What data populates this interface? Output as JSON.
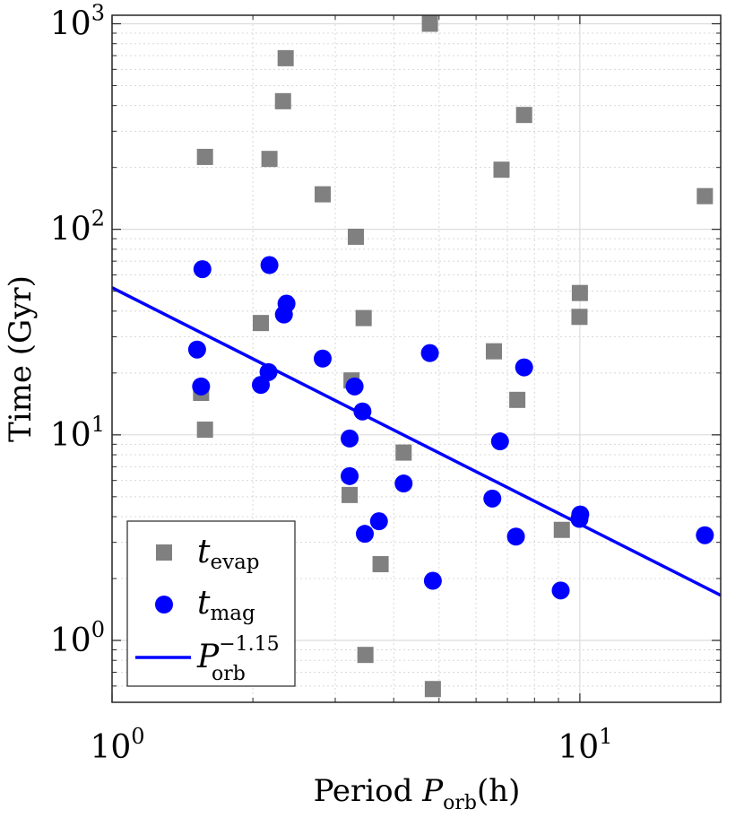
{
  "chart_data": {
    "type": "scatter",
    "x_scale": "log",
    "y_scale": "log",
    "xlim": [
      1,
      20
    ],
    "ylim": [
      0.5,
      1100
    ],
    "grid": true,
    "minor_grid": true,
    "legend_position": "bottom-left",
    "xlabel": {
      "prefix": "Period ",
      "symbol": "P",
      "sub": "orb",
      "suffix": "(h)"
    },
    "ylabel": "Time (Gyr)",
    "xticks": [
      {
        "value": 1,
        "base": "10",
        "exp": "0"
      },
      {
        "value": 10,
        "base": "10",
        "exp": "1"
      }
    ],
    "yticks": [
      {
        "value": 1,
        "base": "10",
        "exp": "0"
      },
      {
        "value": 10,
        "base": "10",
        "exp": "1"
      },
      {
        "value": 100,
        "base": "10",
        "exp": "2"
      },
      {
        "value": 1000,
        "base": "10",
        "exp": "3"
      }
    ],
    "colors": {
      "evap": "#808080",
      "mag": "#0000ff",
      "fit": "#0000ff"
    },
    "series": [
      {
        "key": "evap",
        "marker": "square",
        "legend": {
          "symbol": "t",
          "sub": "evap"
        },
        "points": [
          [
            1.55,
            16.0
          ],
          [
            1.58,
            10.6
          ],
          [
            1.58,
            225
          ],
          [
            2.08,
            35.0
          ],
          [
            2.17,
            220
          ],
          [
            2.32,
            420
          ],
          [
            2.35,
            680
          ],
          [
            2.82,
            148
          ],
          [
            3.25,
            18.4
          ],
          [
            3.22,
            5.1
          ],
          [
            3.32,
            92
          ],
          [
            3.45,
            37.0
          ],
          [
            3.48,
            0.85
          ],
          [
            3.75,
            2.35
          ],
          [
            4.2,
            8.2
          ],
          [
            4.78,
            1000
          ],
          [
            4.85,
            0.58
          ],
          [
            6.55,
            25.5
          ],
          [
            6.8,
            195
          ],
          [
            7.35,
            14.8
          ],
          [
            7.6,
            360
          ],
          [
            9.15,
            3.45
          ],
          [
            10.0,
            49
          ],
          [
            9.98,
            37.5
          ],
          [
            18.5,
            145
          ]
        ]
      },
      {
        "key": "mag",
        "marker": "circle",
        "legend": {
          "symbol": "t",
          "sub": "mag"
        },
        "points": [
          [
            1.52,
            26.0
          ],
          [
            1.55,
            17.2
          ],
          [
            1.56,
            64
          ],
          [
            2.08,
            17.5
          ],
          [
            2.16,
            20.2
          ],
          [
            2.17,
            67
          ],
          [
            2.33,
            38.5
          ],
          [
            2.36,
            43.5
          ],
          [
            2.82,
            23.5
          ],
          [
            3.22,
            9.6
          ],
          [
            3.22,
            6.3
          ],
          [
            3.3,
            17.2
          ],
          [
            3.43,
            13.0
          ],
          [
            3.47,
            3.3
          ],
          [
            3.72,
            3.8
          ],
          [
            4.2,
            5.8
          ],
          [
            4.78,
            25.0
          ],
          [
            4.85,
            1.95
          ],
          [
            6.5,
            4.9
          ],
          [
            6.75,
            9.3
          ],
          [
            7.3,
            3.2
          ],
          [
            7.6,
            21.3
          ],
          [
            9.1,
            1.75
          ],
          [
            9.98,
            3.9
          ],
          [
            10.02,
            4.1
          ],
          [
            18.5,
            3.25
          ]
        ]
      }
    ],
    "fit_line": {
      "key": "fit",
      "amplitude": 52,
      "exponent": -1.15,
      "legend": {
        "symbol": "P",
        "sub": "orb",
        "sup": "−1.15"
      }
    }
  }
}
